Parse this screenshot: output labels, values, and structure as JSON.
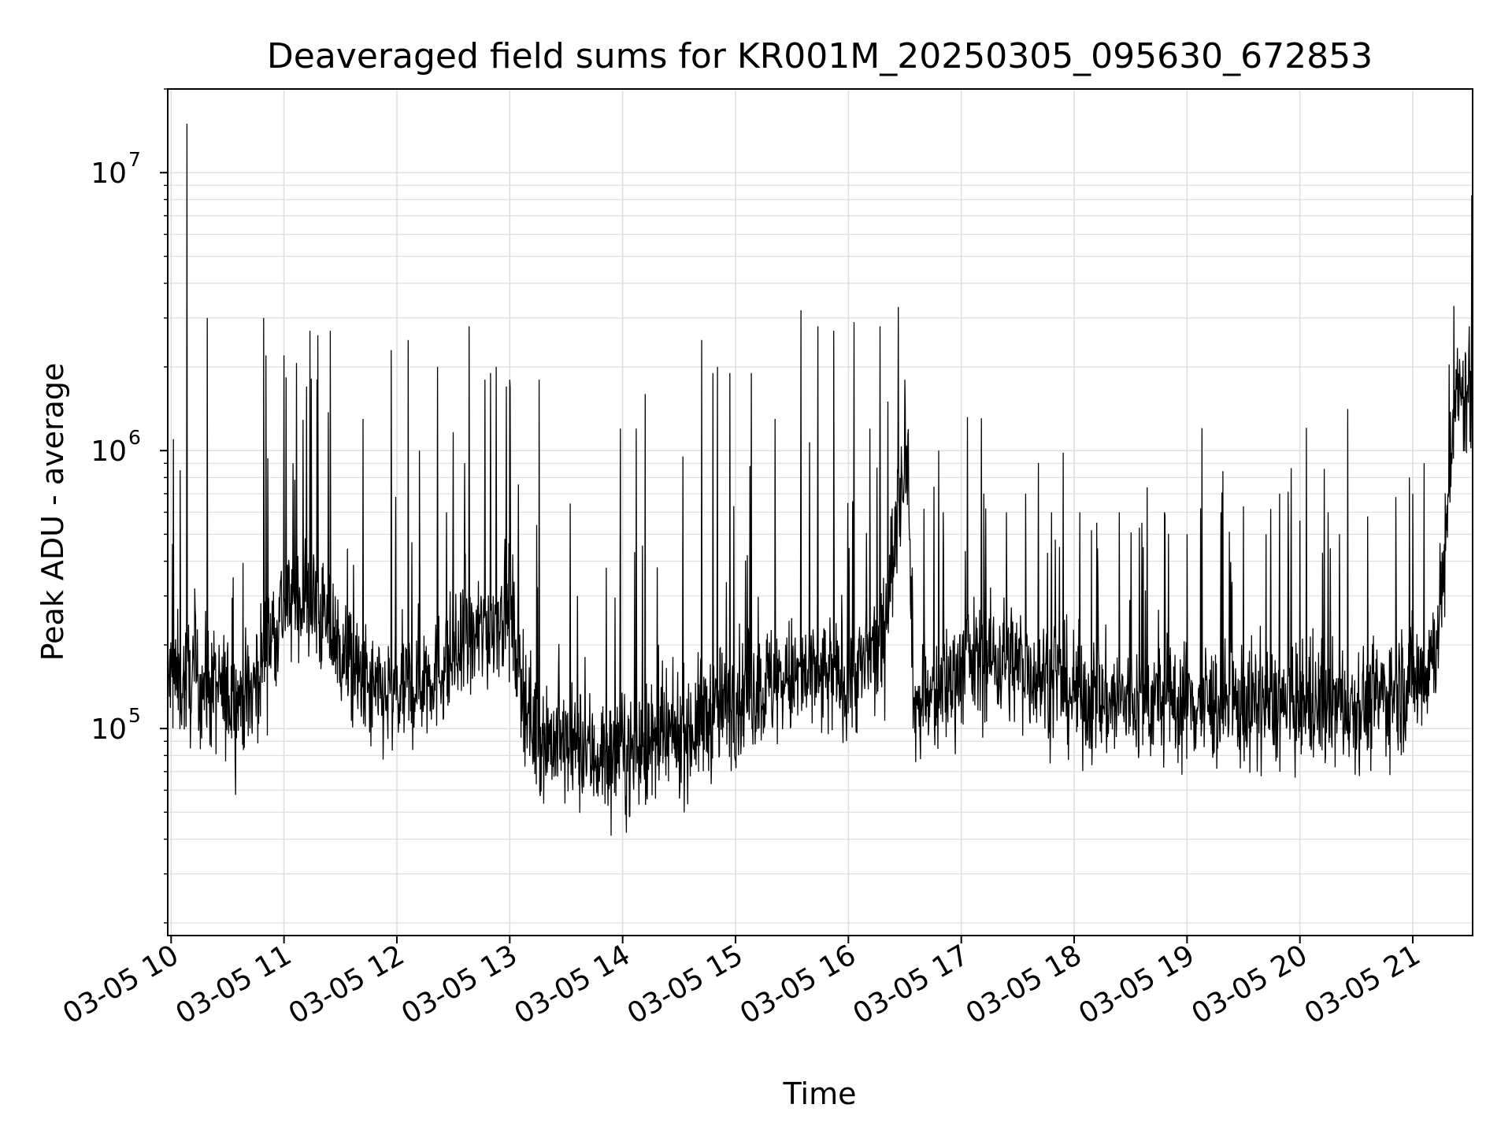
{
  "chart_data": {
    "type": "line",
    "title": "Deaveraged field sums for KR001M_20250305_095630_672853",
    "xlabel": "Time",
    "ylabel": "Peak ADU - average",
    "yscale": "log",
    "grid": true,
    "line_color": "#000000",
    "grid_color": "#e0e0e0",
    "x_start": "03-05 09:58",
    "x_end": "03-05 21:30",
    "xlim_hours": [
      9.97,
      21.53
    ],
    "ylim": [
      18000,
      20000000
    ],
    "x_ticks": [
      {
        "hour": 10,
        "label": "03-05 10"
      },
      {
        "hour": 11,
        "label": "03-05 11"
      },
      {
        "hour": 12,
        "label": "03-05 12"
      },
      {
        "hour": 13,
        "label": "03-05 13"
      },
      {
        "hour": 14,
        "label": "03-05 14"
      },
      {
        "hour": 15,
        "label": "03-05 15"
      },
      {
        "hour": 16,
        "label": "03-05 16"
      },
      {
        "hour": 17,
        "label": "03-05 17"
      },
      {
        "hour": 18,
        "label": "03-05 18"
      },
      {
        "hour": 19,
        "label": "03-05 19"
      },
      {
        "hour": 20,
        "label": "03-05 20"
      },
      {
        "hour": 21,
        "label": "03-05 21"
      }
    ],
    "y_ticks": [
      {
        "value": 100000,
        "base": "10",
        "exp": "5"
      },
      {
        "value": 1000000,
        "base": "10",
        "exp": "6"
      },
      {
        "value": 10000000,
        "base": "10",
        "exp": "7"
      }
    ],
    "series": [
      {
        "baseline": [
          [
            9.97,
            150000
          ],
          [
            10.2,
            150000
          ],
          [
            10.5,
            130000
          ],
          [
            10.7,
            130000
          ],
          [
            10.85,
            200000
          ],
          [
            11.0,
            280000
          ],
          [
            11.2,
            300000
          ],
          [
            11.4,
            230000
          ],
          [
            11.6,
            160000
          ],
          [
            11.8,
            130000
          ],
          [
            12.0,
            130000
          ],
          [
            12.3,
            160000
          ],
          [
            12.6,
            190000
          ],
          [
            12.8,
            230000
          ],
          [
            13.0,
            280000
          ],
          [
            13.08,
            170000
          ],
          [
            13.2,
            100000
          ],
          [
            13.5,
            85000
          ],
          [
            13.8,
            80000
          ],
          [
            14.0,
            80000
          ],
          [
            14.3,
            85000
          ],
          [
            14.6,
            100000
          ],
          [
            14.9,
            120000
          ],
          [
            15.2,
            140000
          ],
          [
            15.5,
            150000
          ],
          [
            15.8,
            150000
          ],
          [
            16.1,
            160000
          ],
          [
            16.3,
            200000
          ],
          [
            16.4,
            450000
          ],
          [
            16.52,
            1200000
          ],
          [
            16.58,
            120000
          ],
          [
            16.8,
            130000
          ],
          [
            17.0,
            170000
          ],
          [
            17.3,
            180000
          ],
          [
            17.6,
            165000
          ],
          [
            17.9,
            140000
          ],
          [
            18.2,
            125000
          ],
          [
            18.6,
            125000
          ],
          [
            19.0,
            125000
          ],
          [
            19.4,
            120000
          ],
          [
            19.8,
            120000
          ],
          [
            20.2,
            120000
          ],
          [
            20.6,
            125000
          ],
          [
            20.9,
            140000
          ],
          [
            21.1,
            160000
          ],
          [
            21.2,
            200000
          ],
          [
            21.3,
            450000
          ],
          [
            21.36,
            1500000
          ],
          [
            21.53,
            1600000
          ]
        ],
        "peaks": [
          [
            10.14,
            15000000
          ],
          [
            10.02,
            1100000
          ],
          [
            10.08,
            850000
          ],
          [
            10.32,
            3000000
          ],
          [
            10.55,
            350000
          ],
          [
            10.84,
            2200000
          ],
          [
            10.82,
            3000000
          ],
          [
            11.0,
            2200000
          ],
          [
            11.08,
            900000
          ],
          [
            11.2,
            1700000
          ],
          [
            11.23,
            2700000
          ],
          [
            11.3,
            2600000
          ],
          [
            11.41,
            2700000
          ],
          [
            11.7,
            1300000
          ],
          [
            11.95,
            2300000
          ],
          [
            12.1,
            2500000
          ],
          [
            12.2,
            1000000
          ],
          [
            12.36,
            2000000
          ],
          [
            12.44,
            600000
          ],
          [
            12.6,
            900000
          ],
          [
            12.64,
            2800000
          ],
          [
            12.78,
            1800000
          ],
          [
            12.83,
            1900000
          ],
          [
            12.88,
            2000000
          ],
          [
            12.97,
            1700000
          ],
          [
            13.0,
            1800000
          ],
          [
            13.26,
            1800000
          ],
          [
            13.6,
            300000
          ],
          [
            13.98,
            1200000
          ],
          [
            14.12,
            1200000
          ],
          [
            14.2,
            1600000
          ],
          [
            14.7,
            2500000
          ],
          [
            14.8,
            1900000
          ],
          [
            14.84,
            2000000
          ],
          [
            14.95,
            1900000
          ],
          [
            15.14,
            1900000
          ],
          [
            15.35,
            1300000
          ],
          [
            15.58,
            3200000
          ],
          [
            15.73,
            2800000
          ],
          [
            15.87,
            2700000
          ],
          [
            16.05,
            2900000
          ],
          [
            16.19,
            1200000
          ],
          [
            16.28,
            2800000
          ],
          [
            16.35,
            1500000
          ],
          [
            16.5,
            1800000
          ],
          [
            16.8,
            1000000
          ],
          [
            16.84,
            600000
          ],
          [
            17.2,
            700000
          ],
          [
            17.4,
            600000
          ],
          [
            17.57,
            700000
          ],
          [
            17.8,
            600000
          ],
          [
            17.87,
            450000
          ],
          [
            18.05,
            600000
          ],
          [
            18.2,
            550000
          ],
          [
            18.4,
            600000
          ],
          [
            18.6,
            550000
          ],
          [
            18.8,
            600000
          ],
          [
            19.0,
            500000
          ],
          [
            19.12,
            620000
          ],
          [
            19.3,
            600000
          ],
          [
            19.5,
            630000
          ],
          [
            19.7,
            500000
          ],
          [
            19.82,
            700000
          ],
          [
            20.0,
            560000
          ],
          [
            20.25,
            600000
          ],
          [
            20.6,
            580000
          ],
          [
            20.85,
            680000
          ],
          [
            20.97,
            800000
          ],
          [
            21.0,
            700000
          ],
          [
            21.1,
            900000
          ],
          [
            21.5,
            2800000
          ]
        ]
      }
    ]
  }
}
